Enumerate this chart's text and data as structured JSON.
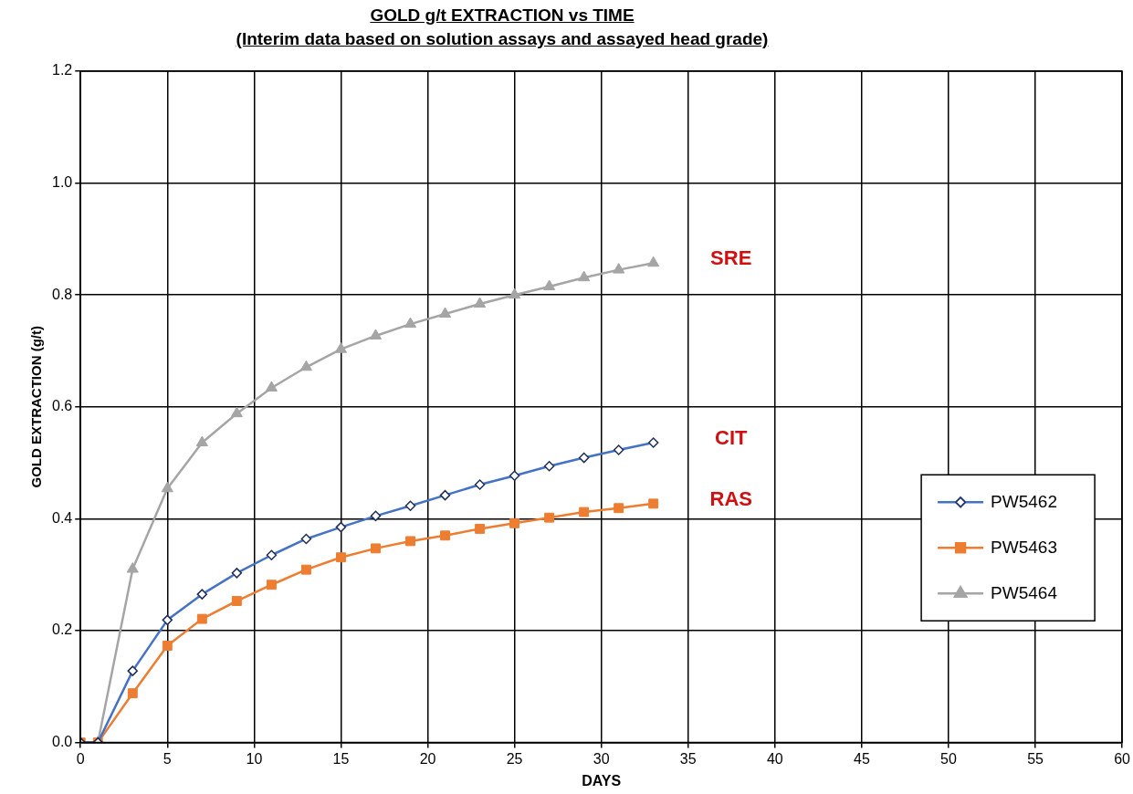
{
  "chart_data": {
    "type": "line",
    "title": "GOLD g/t EXTRACTION vs TIME",
    "subtitle": "(Interim data based on solution assays and assayed head grade)",
    "xlabel": "DAYS",
    "ylabel": "GOLD EXTRACTION (g/t)",
    "x": [
      0,
      1,
      3,
      5,
      7,
      9,
      11,
      13,
      15,
      17,
      19,
      21,
      23,
      25,
      27,
      29,
      31,
      33
    ],
    "series": [
      {
        "name": "PW5462",
        "color": "#4472c4",
        "marker": "diamond",
        "values": [
          0,
          0,
          0.128,
          0.219,
          0.265,
          0.303,
          0.335,
          0.364,
          0.385,
          0.405,
          0.423,
          0.442,
          0.461,
          0.477,
          0.494,
          0.509,
          0.523,
          0.536
        ]
      },
      {
        "name": "PW5463",
        "color": "#ed7d31",
        "marker": "square",
        "values": [
          0,
          0,
          0.088,
          0.173,
          0.221,
          0.253,
          0.282,
          0.309,
          0.331,
          0.347,
          0.36,
          0.37,
          0.382,
          0.392,
          0.402,
          0.412,
          0.419,
          0.427
        ]
      },
      {
        "name": "PW5464",
        "color": "#a5a5a5",
        "marker": "triangle",
        "values": [
          0,
          0,
          0.31,
          0.454,
          0.536,
          0.588,
          0.634,
          0.671,
          0.703,
          0.727,
          0.748,
          0.766,
          0.784,
          0.8,
          0.815,
          0.831,
          0.845,
          0.857
        ]
      }
    ],
    "xlim": [
      0,
      60
    ],
    "xticks": [
      0,
      5,
      10,
      15,
      20,
      25,
      30,
      35,
      40,
      45,
      50,
      55,
      60
    ],
    "ylim": [
      0,
      1.2
    ],
    "yticks": [
      {
        "value": 0,
        "label": "0.0"
      },
      {
        "value": 0.2,
        "label": "0.2"
      },
      {
        "value": 0.4,
        "label": "0.4"
      },
      {
        "value": 0.6,
        "label": "0.6"
      },
      {
        "value": 0.8,
        "label": "0.8"
      },
      {
        "value": 1.0,
        "label": "1.0"
      },
      {
        "value": 1.2,
        "label": "1.2"
      }
    ],
    "annotations": [
      "CIT",
      "RAS",
      "SRE"
    ],
    "grid": true,
    "legend": "right",
    "line_style": "solid"
  }
}
